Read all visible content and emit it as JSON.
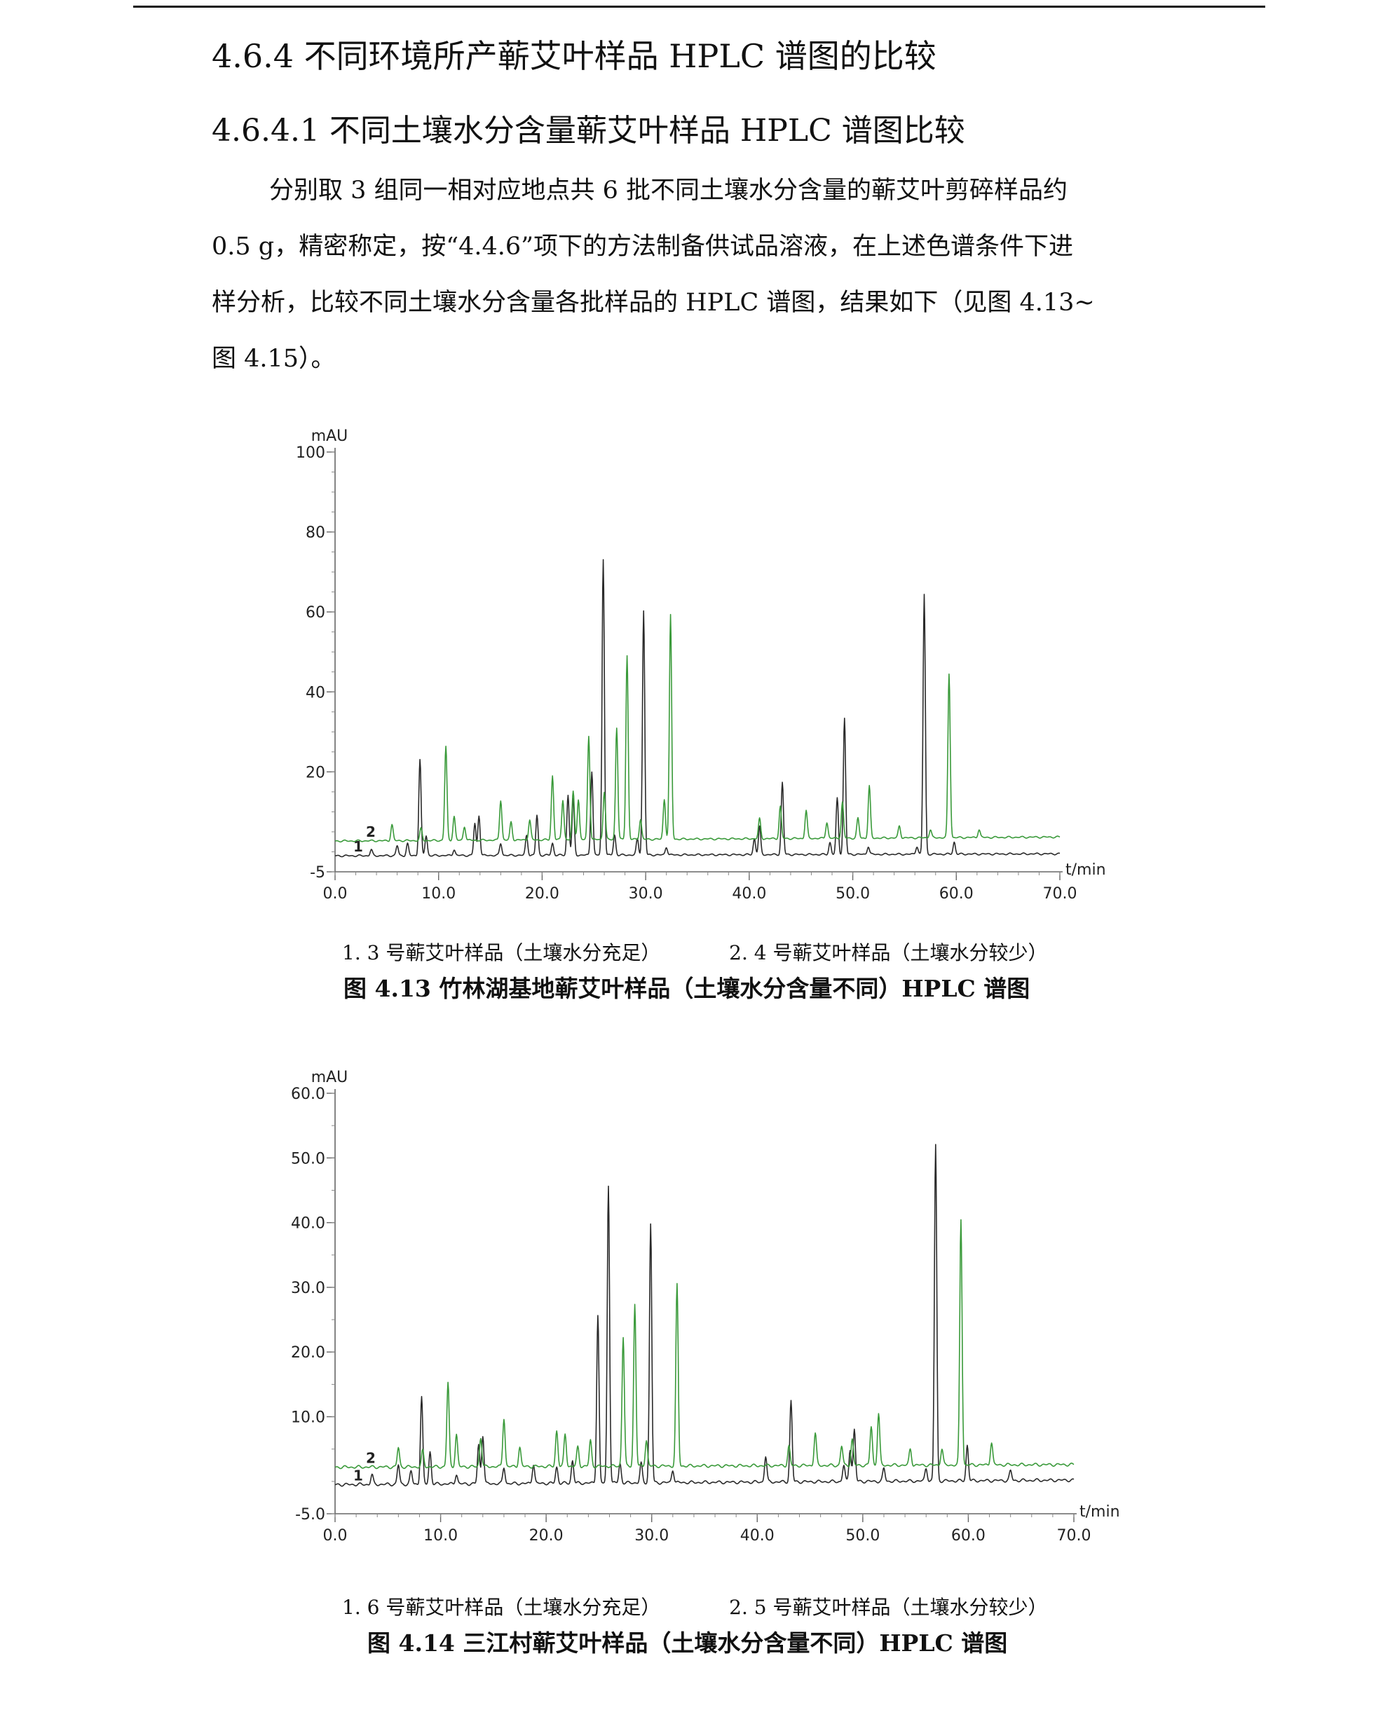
{
  "section": {
    "title": "4.6.4  不同环境所产蕲艾叶样品 HPLC 谱图的比较",
    "subtitle": "4.6.4.1  不同土壤水分含量蕲艾叶样品 HPLC 谱图比较",
    "paragraph_lines": [
      "分别取 3 组同一相对应地点共 6 批不同土壤水分含量的蕲艾叶剪碎样品约",
      "0.5 g，精密称定，按“4.4.6”项下的方法制备供试品溶液，在上述色谱条件下进",
      "样分析，比较不同土壤水分含量各批样品的 HPLC 谱图，结果如下（见图 4.13~",
      "图 4.15）。"
    ]
  },
  "figures": [
    {
      "legend_1": "1. 3 号蕲艾叶样品（土壤水分充足）",
      "legend_2": "2. 4 号蕲艾叶样品（土壤水分较少）",
      "caption": "图 4.13    竹林湖基地蕲艾叶样品（土壤水分含量不同）HPLC 谱图"
    },
    {
      "legend_1": "1. 6 号蕲艾叶样品（土壤水分充足）",
      "legend_2": "2. 5 号蕲艾叶样品（土壤水分较少）",
      "caption": "图 4.14    三江村蕲艾叶样品（土壤水分含量不同）HPLC 谱图"
    }
  ],
  "chart_data": [
    {
      "type": "line",
      "ylabel": "mAU",
      "xlabel": "t/min",
      "xlim": [
        0,
        70
      ],
      "ylim": [
        -5,
        100
      ],
      "xticks": [
        "0.0",
        "10.0",
        "20.0",
        "30.0",
        "40.0",
        "50.0",
        "60.0",
        "70.0"
      ],
      "yticks": [
        {
          "v": -5,
          "label": "-5"
        },
        {
          "v": 20,
          "label": "20"
        },
        {
          "v": 40,
          "label": "40"
        },
        {
          "v": 60,
          "label": "60"
        },
        {
          "v": 80,
          "label": "80"
        },
        {
          "v": 100,
          "label": "100"
        }
      ],
      "series": [
        {
          "name": "1",
          "color": "#2a2a2a",
          "baseline_start": -1.0,
          "baseline_end": -0.5,
          "peaks": [
            [
              3.5,
              1.5
            ],
            [
              6.0,
              2.5
            ],
            [
              7.0,
              3.0
            ],
            [
              8.2,
              24.0
            ],
            [
              8.8,
              5.0
            ],
            [
              11.5,
              1.5
            ],
            [
              13.5,
              8.0
            ],
            [
              13.9,
              10.0
            ],
            [
              16.0,
              3.0
            ],
            [
              18.5,
              5.0
            ],
            [
              19.5,
              10.0
            ],
            [
              21.0,
              3.0
            ],
            [
              22.5,
              15.0
            ],
            [
              23.0,
              14.0
            ],
            [
              24.8,
              21.0
            ],
            [
              25.9,
              74.0
            ],
            [
              27.0,
              5.0
            ],
            [
              29.2,
              4.0
            ],
            [
              29.8,
              61.0
            ],
            [
              32.0,
              2.0
            ],
            [
              40.5,
              4.0
            ],
            [
              41.0,
              7.0
            ],
            [
              43.2,
              18.0
            ],
            [
              47.8,
              3.0
            ],
            [
              48.5,
              14.0
            ],
            [
              49.2,
              34.0
            ],
            [
              51.5,
              2.0
            ],
            [
              56.2,
              2.0
            ],
            [
              56.9,
              65.0
            ],
            [
              59.8,
              3.0
            ]
          ]
        },
        {
          "name": "2",
          "color": "#3a9a3a",
          "baseline_start": 2.7,
          "baseline_end": 3.7,
          "peaks": [
            [
              5.5,
              4.0
            ],
            [
              8.3,
              3.0
            ],
            [
              10.7,
              23.5
            ],
            [
              11.5,
              6.0
            ],
            [
              12.5,
              3.5
            ],
            [
              16.0,
              10.0
            ],
            [
              17.0,
              4.5
            ],
            [
              18.8,
              5.0
            ],
            [
              21.0,
              16.0
            ],
            [
              22.0,
              10.0
            ],
            [
              23.0,
              12.0
            ],
            [
              23.5,
              10.0
            ],
            [
              24.5,
              26.0
            ],
            [
              26.0,
              12.0
            ],
            [
              27.2,
              28.0
            ],
            [
              28.2,
              46.0
            ],
            [
              29.5,
              5.0
            ],
            [
              31.8,
              10.0
            ],
            [
              32.4,
              56.0
            ],
            [
              41.0,
              5.0
            ],
            [
              43.0,
              8.0
            ],
            [
              45.5,
              7.0
            ],
            [
              47.5,
              4.0
            ],
            [
              49.0,
              9.0
            ],
            [
              50.5,
              5.0
            ],
            [
              51.6,
              13.0
            ],
            [
              54.5,
              3.0
            ],
            [
              57.5,
              2.0
            ],
            [
              59.3,
              41.0
            ],
            [
              62.2,
              2.0
            ]
          ]
        }
      ]
    },
    {
      "type": "line",
      "ylabel": "mAU",
      "xlabel": "t/min",
      "xlim": [
        0,
        70
      ],
      "ylim": [
        -5,
        60
      ],
      "xticks": [
        "0.0",
        "10.0",
        "20.0",
        "30.0",
        "40.0",
        "50.0",
        "60.0",
        "70.0"
      ],
      "yticks": [
        {
          "v": -5,
          "label": "-5.0"
        },
        {
          "v": 10,
          "label": "10.0"
        },
        {
          "v": 20,
          "label": "20.0"
        },
        {
          "v": 30,
          "label": "30.0"
        },
        {
          "v": 40,
          "label": "40.0"
        },
        {
          "v": 50,
          "label": "50.0"
        },
        {
          "v": 60,
          "label": "60.0"
        }
      ],
      "series": [
        {
          "name": "1",
          "color": "#2a2a2a",
          "baseline_start": -0.5,
          "baseline_end": 0.2,
          "peaks": [
            [
              3.5,
              1.5
            ],
            [
              6.0,
              3.0
            ],
            [
              7.2,
              2.0
            ],
            [
              8.2,
              13.5
            ],
            [
              9.0,
              5.0
            ],
            [
              11.5,
              1.5
            ],
            [
              13.6,
              6.0
            ],
            [
              14.0,
              7.5
            ],
            [
              16.0,
              2.5
            ],
            [
              18.8,
              3.0
            ],
            [
              21.0,
              2.5
            ],
            [
              22.5,
              3.5
            ],
            [
              24.9,
              26.0
            ],
            [
              25.9,
              46.0
            ],
            [
              27.0,
              3.0
            ],
            [
              29.0,
              3.0
            ],
            [
              29.9,
              40.0
            ],
            [
              32.0,
              2.0
            ],
            [
              40.8,
              4.0
            ],
            [
              43.2,
              12.5
            ],
            [
              48.2,
              2.5
            ],
            [
              48.8,
              5.0
            ],
            [
              49.2,
              8.0
            ],
            [
              52.0,
              2.0
            ],
            [
              56.0,
              2.0
            ],
            [
              56.9,
              52.0
            ],
            [
              59.9,
              5.5
            ],
            [
              64.0,
              1.5
            ]
          ]
        },
        {
          "name": "2",
          "color": "#3a9a3a",
          "baseline_start": 2.2,
          "baseline_end": 2.6,
          "peaks": [
            [
              6.0,
              3.0
            ],
            [
              8.3,
              2.5
            ],
            [
              10.7,
              13.0
            ],
            [
              11.5,
              5.0
            ],
            [
              13.8,
              4.5
            ],
            [
              16.0,
              7.5
            ],
            [
              17.5,
              3.0
            ],
            [
              21.0,
              5.5
            ],
            [
              21.8,
              5.0
            ],
            [
              23.0,
              3.0
            ],
            [
              24.2,
              4.0
            ],
            [
              27.3,
              20.0
            ],
            [
              28.4,
              25.0
            ],
            [
              29.5,
              4.0
            ],
            [
              32.4,
              28.0
            ],
            [
              43.0,
              3.0
            ],
            [
              45.5,
              5.0
            ],
            [
              48.0,
              3.0
            ],
            [
              49.0,
              4.0
            ],
            [
              50.8,
              6.0
            ],
            [
              51.5,
              8.0
            ],
            [
              54.5,
              2.5
            ],
            [
              57.5,
              2.5
            ],
            [
              59.3,
              38.0
            ],
            [
              62.2,
              3.5
            ]
          ]
        }
      ]
    }
  ]
}
